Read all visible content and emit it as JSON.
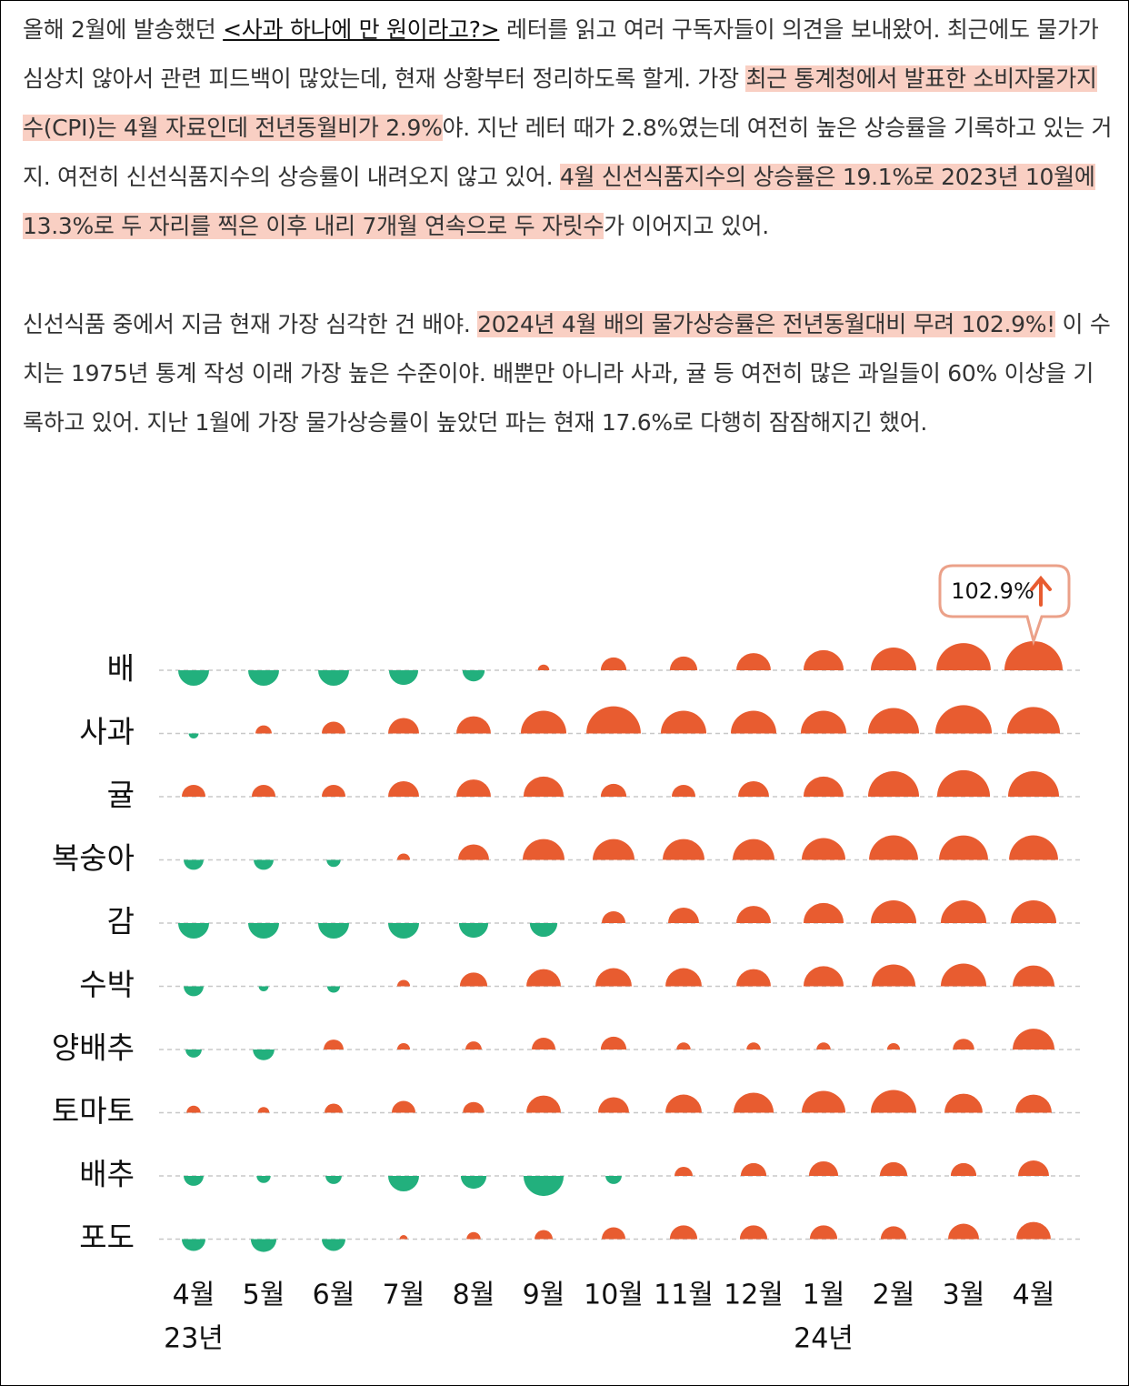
{
  "article": {
    "paragraphs": [
      [
        {
          "text": "올해 2월에 발송했던 ",
          "style": "plain"
        },
        {
          "text": "<사과 하나에 만 원이라고?>",
          "style": "link"
        },
        {
          "text": " 레터를 읽고 여러 구독자들이 의견을 보내왔어. 최근에도 물가가 심상치 않아서 관련 피드백이 많았는데, 현재 상황부터 정리하도록 할게. 가장 ",
          "style": "plain"
        },
        {
          "text": "최근 통계청에서 발표한 소비자물가지수(CPI)는 4월 자료인데 전년동월비가 2.9%",
          "style": "highlight"
        },
        {
          "text": "야. 지난 레터 때가 2.8%였는데 여전히 높은 상승률을 기록하고 있는 거지. 여전히 신선식품지수의 상승률이 내려오지 않고 있어. ",
          "style": "plain"
        },
        {
          "text": "4월 신선식품지수의 상승률은 19.1%로 2023년 10월에 13.3%로 두 자리를 찍은 이후 내리 7개월 연속으로 두 자릿수",
          "style": "highlight"
        },
        {
          "text": "가 이어지고 있어.",
          "style": "plain"
        }
      ],
      [
        {
          "text": "신선식품 중에서 지금 현재 가장 심각한 건 배야. ",
          "style": "plain"
        },
        {
          "text": "2024년 4월 배의 물가상승률은 전년동월대비 무려 102.9%!",
          "style": "highlight"
        },
        {
          "text": " 이 수치는 1975년 통계 작성 이래 가장 높은 수준이야. 배뿐만 아니라 사과, 귤 등 여전히 많은 과일들이 60% 이상을 기록하고 있어. 지난 1월에 가장 물가상승률이 높았던 파는 현재 17.6%로 다행히 잠잠해지긴 했어.",
          "style": "plain"
        }
      ]
    ]
  },
  "chart_data": {
    "type": "semicircle-matrix",
    "categories": [
      "4월",
      "5월",
      "6월",
      "7월",
      "8월",
      "9월",
      "10월",
      "11월",
      "12월",
      "1월",
      "2월",
      "3월",
      "4월"
    ],
    "years": [
      {
        "label": "23년",
        "column": 0
      },
      {
        "label": "24년",
        "column": 9
      }
    ],
    "positive_color": "#e85c30",
    "negative_color": "#22b07d",
    "series": [
      {
        "name": "배",
        "values": [
          -29,
          -29,
          -29,
          -26,
          -15,
          4,
          20,
          23,
          36,
          49,
          63,
          90,
          102.9
        ]
      },
      {
        "name": "사과",
        "values": [
          -3,
          8,
          17,
          29,
          36,
          63,
          90,
          63,
          63,
          63,
          79,
          97,
          85
        ]
      },
      {
        "name": "귤",
        "values": [
          17,
          17,
          17,
          29,
          36,
          49,
          20,
          17,
          29,
          49,
          79,
          85,
          79
        ]
      },
      {
        "name": "복숭아",
        "values": [
          -12,
          -12,
          -6,
          5,
          29,
          53,
          53,
          53,
          53,
          58,
          73,
          73,
          73
        ]
      },
      {
        "name": "감",
        "values": [
          -29,
          -29,
          -29,
          -29,
          -26,
          -23,
          17,
          29,
          36,
          49,
          63,
          63,
          63
        ]
      },
      {
        "name": "수박",
        "values": [
          -12,
          -3,
          -5,
          5,
          23,
          36,
          40,
          40,
          36,
          49,
          58,
          63,
          53
        ]
      },
      {
        "name": "양배추",
        "values": [
          -8,
          -14,
          12,
          5,
          8,
          17,
          20,
          6,
          6,
          6,
          5,
          14,
          53
        ]
      },
      {
        "name": "토마토",
        "values": [
          6,
          4,
          10,
          17,
          14,
          36,
          29,
          40,
          49,
          58,
          63,
          44,
          40
        ]
      },
      {
        "name": "배추",
        "values": [
          -12,
          -6,
          -8,
          -29,
          -20,
          -49,
          -8,
          10,
          20,
          26,
          23,
          20,
          29
        ]
      },
      {
        "name": "포도",
        "values": [
          -17,
          -20,
          -17,
          2,
          6,
          10,
          17,
          23,
          23,
          23,
          20,
          29,
          36
        ]
      }
    ],
    "annotation": {
      "label": "102.9%",
      "series": 0,
      "index": 12
    }
  }
}
